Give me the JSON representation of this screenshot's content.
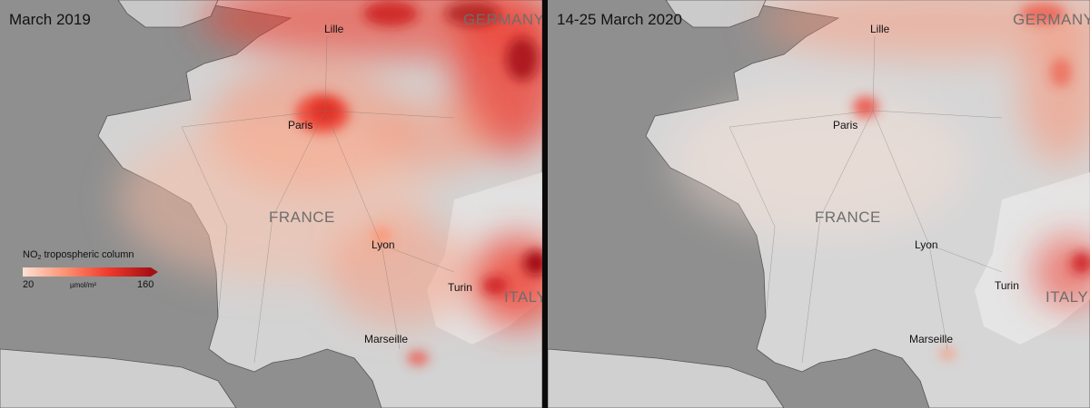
{
  "panels": [
    {
      "period_label": "March 2019",
      "cities": {
        "lille": "Lille",
        "paris": "Paris",
        "lyon": "Lyon",
        "turin": "Turin",
        "marseille": "Marseille"
      },
      "countries": {
        "france": "FRANCE",
        "germany": "GERMANY",
        "italy": "ITALY"
      },
      "legend": {
        "title_prefix": "NO",
        "title_subscript": "2",
        "title_suffix": " tropospheric column",
        "min": "20",
        "max": "160",
        "unit": "µmol/m²"
      }
    },
    {
      "period_label": "14-25 March 2020",
      "cities": {
        "lille": "Lille",
        "paris": "Paris",
        "lyon": "Lyon",
        "turin": "Turin",
        "marseille": "Marseille"
      },
      "countries": {
        "france": "FRANCE",
        "germany": "GERMANY",
        "italy": "ITALY"
      }
    }
  ],
  "colors": {
    "ocean": "#8f8f8f",
    "land": "#d3d3d3",
    "no2_low": "#fde0d4",
    "no2_mid": "#fc9272",
    "no2_high": "#ef3b2c",
    "no2_max": "#a50f15"
  }
}
